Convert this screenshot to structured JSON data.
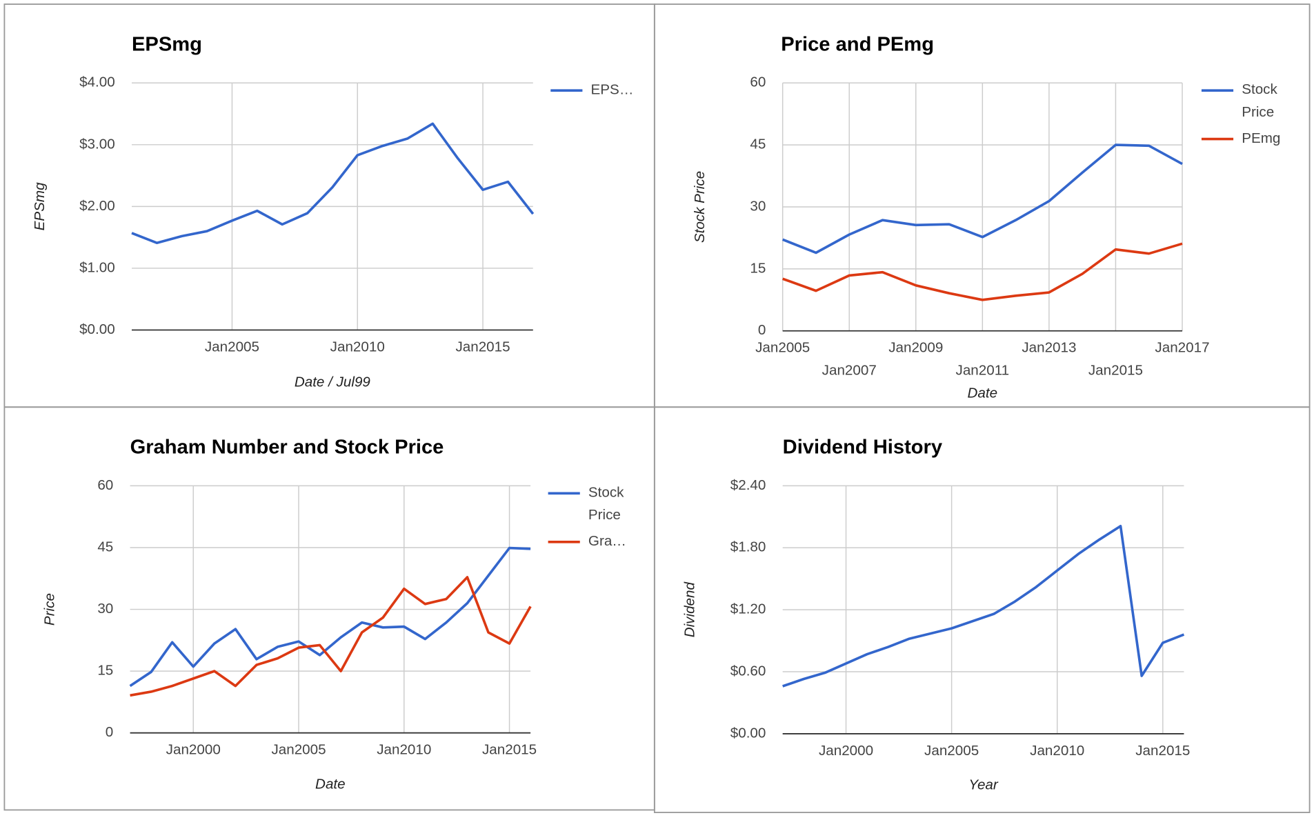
{
  "chart_data": [
    {
      "type": "line",
      "title": "EPSmg",
      "x_label": "Date / Jul99",
      "y_label": "EPSmg",
      "x": [
        "2001-01",
        "2002-01",
        "2003-01",
        "2004-01",
        "2005-01",
        "2006-01",
        "2007-01",
        "2008-01",
        "2009-01",
        "2010-01",
        "2011-01",
        "2012-01",
        "2013-01",
        "2014-01",
        "2015-01",
        "2016-01",
        "2017-01"
      ],
      "series": [
        {
          "name": "EPS…",
          "color": "#3366cc",
          "values": [
            1.57,
            1.41,
            1.52,
            1.6,
            1.77,
            1.93,
            1.71,
            1.89,
            2.31,
            2.83,
            2.98,
            3.1,
            3.34,
            2.78,
            2.27,
            2.4,
            1.88
          ]
        }
      ],
      "xlim": [
        "2001-01",
        "2017-01"
      ],
      "xticks": [
        {
          "value": "2005-01",
          "label": "Jan2005"
        },
        {
          "value": "2010-01",
          "label": "Jan2010"
        },
        {
          "value": "2015-01",
          "label": "Jan2015"
        }
      ],
      "ylim": [
        0,
        4
      ],
      "yticks": [
        {
          "value": 0,
          "label": "$0.00"
        },
        {
          "value": 1,
          "label": "$1.00"
        },
        {
          "value": 2,
          "label": "$2.00"
        },
        {
          "value": 3,
          "label": "$3.00"
        },
        {
          "value": 4,
          "label": "$4.00"
        }
      ],
      "grid": true,
      "legend": "right"
    },
    {
      "type": "line",
      "title": "Price and PEmg",
      "x_label": "Date",
      "y_label": "Stock Price",
      "x": [
        "2005-01",
        "2006-01",
        "2007-01",
        "2008-01",
        "2009-01",
        "2010-01",
        "2011-01",
        "2012-01",
        "2013-01",
        "2014-01",
        "2015-01",
        "2016-01",
        "2017-01"
      ],
      "series": [
        {
          "name": "Stock Price",
          "color": "#3366cc",
          "values": [
            22.1,
            18.9,
            23.3,
            26.8,
            25.6,
            25.8,
            22.7,
            26.8,
            31.4,
            38.3,
            45.0,
            44.8,
            40.4
          ]
        },
        {
          "name": "PEmg",
          "color": "#dc3912",
          "values": [
            12.6,
            9.7,
            13.4,
            14.2,
            11.0,
            9.1,
            7.5,
            8.5,
            9.3,
            13.8,
            19.7,
            18.7,
            21.1
          ]
        }
      ],
      "xlim": [
        "2005-01",
        "2017-01"
      ],
      "xticks": [
        {
          "value": "2005-01",
          "label": "Jan2005"
        },
        {
          "value": "2007-01",
          "label": "Jan2007"
        },
        {
          "value": "2009-01",
          "label": "Jan2009"
        },
        {
          "value": "2011-01",
          "label": "Jan2011"
        },
        {
          "value": "2013-01",
          "label": "Jan2013"
        },
        {
          "value": "2015-01",
          "label": "Jan2015"
        },
        {
          "value": "2017-01",
          "label": "Jan2017"
        }
      ],
      "ylim": [
        0,
        60
      ],
      "yticks": [
        0,
        15,
        30,
        45,
        60
      ],
      "grid": true,
      "legend": "right"
    },
    {
      "type": "line",
      "title": "Graham Number and Stock Price",
      "x_label": "Date",
      "y_label": "Price",
      "x": [
        "1997-01",
        "1998-01",
        "1999-01",
        "2000-01",
        "2001-01",
        "2002-01",
        "2003-01",
        "2004-01",
        "2005-01",
        "2006-01",
        "2007-01",
        "2008-01",
        "2009-01",
        "2010-01",
        "2011-01",
        "2012-01",
        "2013-01",
        "2014-01",
        "2015-01",
        "2016-01"
      ],
      "series": [
        {
          "name": "Stock Price",
          "color": "#3366cc",
          "values": [
            11.4,
            14.8,
            22.0,
            16.1,
            21.7,
            25.2,
            17.9,
            20.9,
            22.2,
            18.9,
            23.2,
            26.8,
            25.6,
            25.8,
            22.8,
            26.8,
            31.5,
            38.2,
            44.9,
            44.7
          ]
        },
        {
          "name": "Gra…",
          "color": "#dc3912",
          "values": [
            9.1,
            10.0,
            11.4,
            13.2,
            15.0,
            11.4,
            16.5,
            18.1,
            20.7,
            21.3,
            15.0,
            24.4,
            28.0,
            35.0,
            31.3,
            32.5,
            37.8,
            24.4,
            21.7,
            30.7
          ]
        }
      ],
      "xlim": [
        "1997-01",
        "2016-01"
      ],
      "xticks": [
        {
          "value": "2000-01",
          "label": "Jan2000"
        },
        {
          "value": "2005-01",
          "label": "Jan2005"
        },
        {
          "value": "2010-01",
          "label": "Jan2010"
        },
        {
          "value": "2015-01",
          "label": "Jan2015"
        }
      ],
      "ylim": [
        0,
        60
      ],
      "yticks": [
        0,
        15,
        30,
        45,
        60
      ],
      "grid": true,
      "legend": "right"
    },
    {
      "type": "line",
      "title": "Dividend History",
      "x_label": "Year",
      "y_label": "Dividend",
      "x": [
        "1997-01",
        "1998-01",
        "1999-01",
        "2000-01",
        "2001-01",
        "2002-01",
        "2003-01",
        "2004-01",
        "2005-01",
        "2006-01",
        "2007-01",
        "2008-01",
        "2009-01",
        "2010-01",
        "2011-01",
        "2012-01",
        "2013-01",
        "2014-01",
        "2015-01",
        "2016-01"
      ],
      "series": [
        {
          "color": "#3366cc",
          "values": [
            0.46,
            0.53,
            0.59,
            0.68,
            0.77,
            0.84,
            0.92,
            0.97,
            1.02,
            1.09,
            1.16,
            1.28,
            1.42,
            1.58,
            1.74,
            1.88,
            2.01,
            0.56,
            0.88,
            0.96
          ]
        }
      ],
      "xlim": [
        "1997-01",
        "2016-01"
      ],
      "xticks": [
        {
          "value": "2000-01",
          "label": "Jan2000"
        },
        {
          "value": "2005-01",
          "label": "Jan2005"
        },
        {
          "value": "2010-01",
          "label": "Jan2010"
        },
        {
          "value": "2015-01",
          "label": "Jan2015"
        }
      ],
      "ylim": [
        0,
        2.4
      ],
      "yticks": [
        {
          "value": 0,
          "label": "$0.00"
        },
        {
          "value": 0.6,
          "label": "$0.60"
        },
        {
          "value": 1.2,
          "label": "$1.20"
        },
        {
          "value": 1.8,
          "label": "$1.80"
        },
        {
          "value": 2.4,
          "label": "$2.40"
        }
      ],
      "grid": true
    }
  ]
}
